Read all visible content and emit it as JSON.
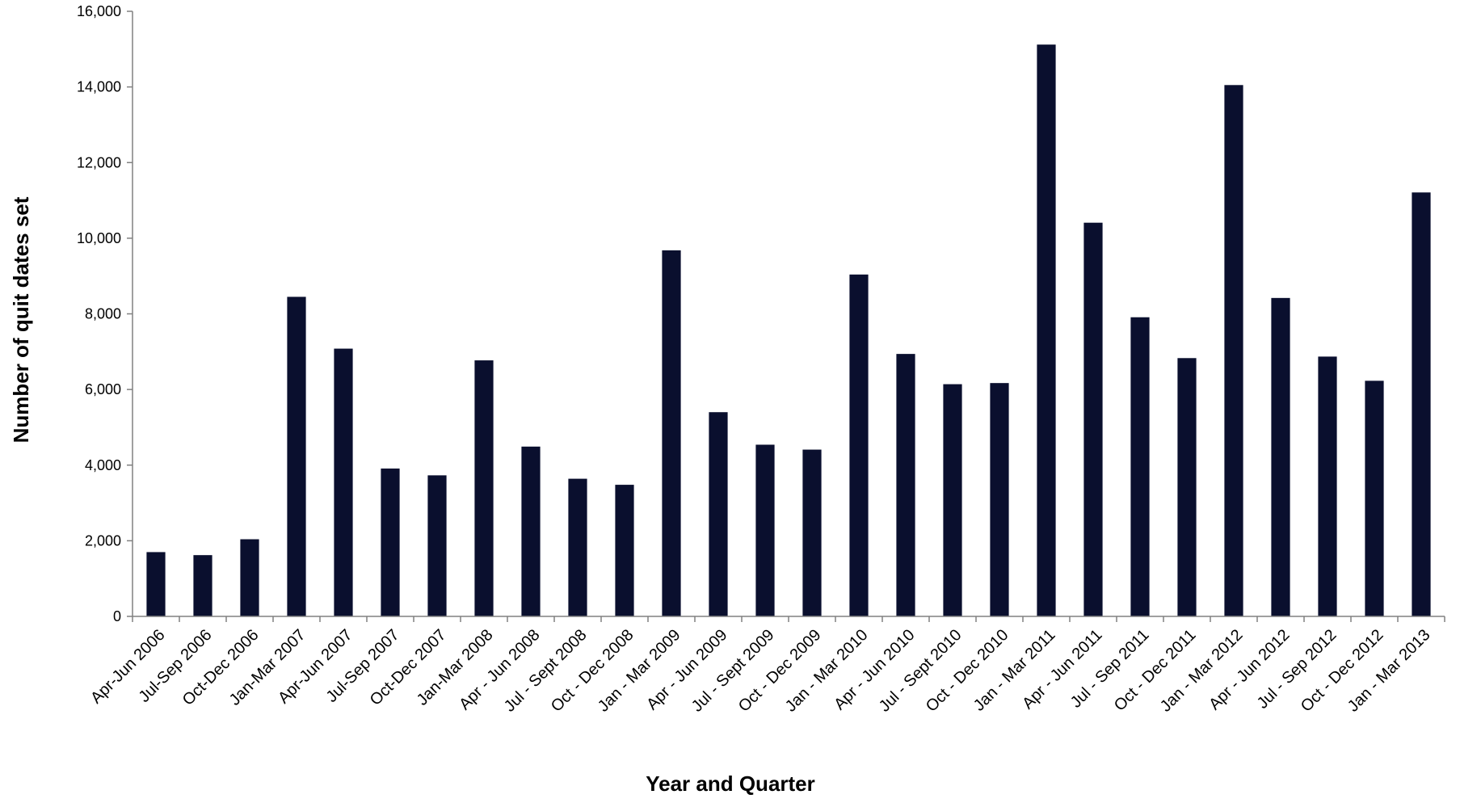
{
  "chart_data": {
    "type": "bar",
    "title": "",
    "xlabel": "Year and Quarter",
    "ylabel": "Number of quit dates set",
    "ylim": [
      0,
      16000
    ],
    "yticks": [
      0,
      2000,
      4000,
      6000,
      8000,
      10000,
      12000,
      14000,
      16000
    ],
    "ytick_labels": [
      "0",
      "2,000",
      "4,000",
      "6,000",
      "8,000",
      "10,000",
      "12,000",
      "14,000",
      "16,000"
    ],
    "grid": false,
    "legend": "none",
    "bar_color": "#0a0f2e",
    "categories": [
      "Apr-Jun 2006",
      "Jul-Sep 2006",
      "Oct-Dec 2006",
      "Jan-Mar 2007",
      "Apr-Jun 2007",
      "Jul-Sep 2007",
      "Oct-Dec 2007",
      "Jan-Mar 2008",
      "Apr - Jun 2008",
      "Jul - Sept 2008",
      "Oct - Dec 2008",
      "Jan - Mar 2009",
      "Apr - Jun 2009",
      "Jul - Sept 2009",
      "Oct - Dec 2009",
      "Jan - Mar 2010",
      "Apr - Jun 2010",
      "Jul - Sept 2010",
      "Oct - Dec 2010",
      "Jan - Mar 2011",
      "Apr - Jun 2011",
      "Jul - Sep 2011",
      "Oct - Dec 2011",
      "Jan - Mar 2012",
      "Apr - Jun 2012",
      "Jul - Sep 2012",
      "Oct - Dec 2012",
      "Jan - Mar 2013"
    ],
    "values": [
      1700,
      1620,
      2040,
      8450,
      7080,
      3910,
      3730,
      6770,
      4490,
      3640,
      3480,
      9680,
      5400,
      4540,
      4410,
      9040,
      6940,
      6140,
      6170,
      15120,
      10410,
      7910,
      6830,
      14050,
      8420,
      6870,
      6230,
      11210
    ]
  }
}
